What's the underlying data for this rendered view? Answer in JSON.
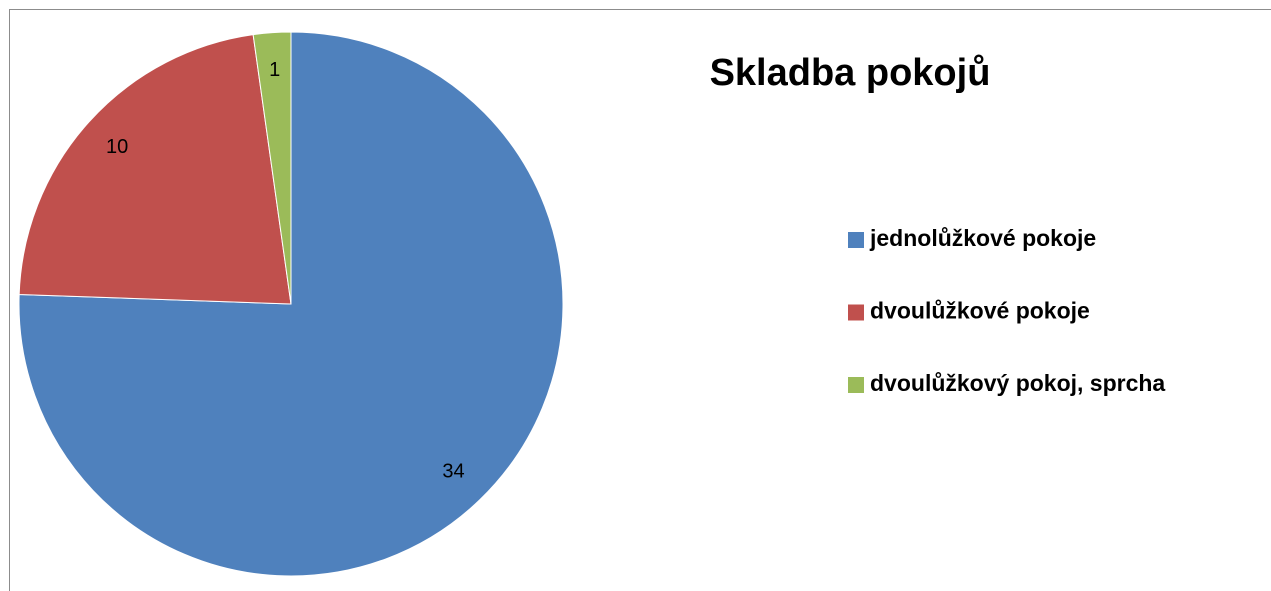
{
  "chart_data": {
    "type": "pie",
    "title": "Skladba pokojů",
    "categories": [
      "jednolůžkové pokoje",
      "dvoulůžkové pokoje",
      "dvoulůžkový pokoj, sprcha"
    ],
    "values": [
      34,
      10,
      1
    ],
    "colors": [
      "#4f81bd",
      "#c0504d",
      "#9bbb59"
    ],
    "legend": "right"
  }
}
